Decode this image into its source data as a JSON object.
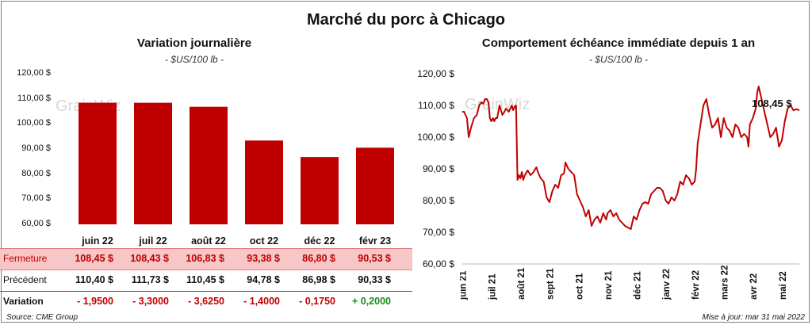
{
  "main_title": "Marché du porc à Chicago",
  "watermark": "GrainWiz",
  "left": {
    "title": "Variation  journalière",
    "units": "- $US/100 lb -",
    "yticks": [
      "120,00 $",
      "110,00 $",
      "100,00 $",
      "90,00 $",
      "80,00 $",
      "70,00 $",
      "60,00 $"
    ],
    "chart_data": {
      "type": "bar",
      "categories": [
        "juin 22",
        "juil 22",
        "août 22",
        "oct 22",
        "déc 22",
        "févr 23"
      ],
      "values": [
        108.45,
        108.43,
        106.83,
        93.38,
        86.8,
        90.53
      ],
      "ylim": [
        60,
        120
      ],
      "bar_color": "#c00000"
    },
    "table": {
      "rows": [
        {
          "label": "Fermeture",
          "values": [
            "108,45  $",
            "108,43  $",
            "106,83  $",
            "93,38  $",
            "86,80  $",
            "90,53  $"
          ]
        },
        {
          "label": "Précédent",
          "values": [
            "110,40  $",
            "111,73  $",
            "110,45  $",
            "94,78  $",
            "86,98  $",
            "90,33  $"
          ]
        },
        {
          "label": "Variation",
          "values": [
            "- 1,9500",
            "- 3,3000",
            "- 3,6250",
            "- 1,4000",
            "- 0,1750",
            "+ 0,2000"
          ]
        }
      ]
    },
    "source": "Source: CME Group"
  },
  "right": {
    "title": "Comportement  échéance immédiate depuis 1 an",
    "units": "- $US/100 lb -",
    "yticks": [
      "120,00 $",
      "110,00 $",
      "100,00 $",
      "90,00 $",
      "80,00 $",
      "70,00 $",
      "60,00 $"
    ],
    "xticks": [
      "juin 21",
      "juil 21",
      "août 21",
      "sept 21",
      "oct 21",
      "nov 21",
      "déc 21",
      "janv 22",
      "févr 22",
      "mars 22",
      "avr 22",
      "mai 22"
    ],
    "last_label": "108,45 $",
    "update": "Mise à jour: mar 31 mai 2022",
    "chart_data": {
      "type": "line",
      "ylim": [
        60,
        120
      ],
      "color": "#c00000",
      "x": [
        0,
        0.06,
        0.16,
        0.22,
        0.3,
        0.4,
        0.5,
        0.58,
        0.66,
        0.72,
        0.78,
        0.84,
        0.9,
        0.95,
        1.0,
        1.06,
        1.1,
        1.15,
        1.2,
        1.28,
        1.38,
        1.45,
        1.5,
        1.6,
        1.7,
        1.75,
        1.8,
        1.85,
        1.9,
        1.95,
        2.0,
        2.05,
        2.1,
        2.15,
        2.25,
        2.35,
        2.45,
        2.55,
        2.6,
        2.7,
        2.8,
        2.9,
        3.0,
        3.1,
        3.2,
        3.3,
        3.4,
        3.5,
        3.55,
        3.65,
        3.75,
        3.85,
        3.95,
        4.05,
        4.15,
        4.25,
        4.35,
        4.45,
        4.55,
        4.65,
        4.75,
        4.85,
        4.95,
        5.0,
        5.1,
        5.2,
        5.3,
        5.4,
        5.5,
        5.6,
        5.7,
        5.8,
        5.9,
        6.0,
        6.1,
        6.2,
        6.3,
        6.4,
        6.5,
        6.6,
        6.7,
        6.8,
        6.9,
        7.0,
        7.1,
        7.2,
        7.3,
        7.4,
        7.5,
        7.6,
        7.7,
        7.8,
        7.9,
        8.0,
        8.05,
        8.1,
        8.2,
        8.3,
        8.4,
        8.5,
        8.6,
        8.7,
        8.8,
        8.9,
        9.0,
        9.1,
        9.2,
        9.3,
        9.4,
        9.5,
        9.6,
        9.7,
        9.8,
        9.85,
        9.9,
        10.0,
        10.1,
        10.15,
        10.2,
        10.3,
        10.4,
        10.5,
        10.6,
        10.7,
        10.8,
        10.9,
        11.0,
        11.1,
        11.2,
        11.3,
        11.4,
        11.5,
        11.6
      ],
      "y": [
        108,
        108,
        106,
        100,
        103,
        106,
        107,
        110,
        111,
        110.5,
        112,
        112,
        111,
        106,
        105,
        106,
        105,
        106,
        106,
        110,
        107,
        108,
        109,
        108,
        110,
        108.5,
        109.5,
        110,
        86.5,
        88,
        87,
        89,
        86.5,
        88,
        89.5,
        88,
        89,
        90.5,
        89,
        87,
        86,
        81,
        79.5,
        83,
        85,
        84,
        88,
        88.5,
        92,
        90,
        89,
        88,
        82,
        80,
        78,
        75,
        77,
        72,
        74,
        75,
        73,
        76,
        74,
        76,
        77,
        75,
        76,
        74,
        73,
        72,
        71.5,
        71,
        75,
        74,
        77,
        79,
        79.5,
        79,
        82,
        83,
        84,
        84,
        83,
        80,
        79,
        81,
        80,
        82,
        86,
        85,
        88,
        87,
        85,
        86,
        90,
        98,
        104,
        110,
        112,
        107,
        103,
        104,
        106,
        100,
        106,
        103,
        102,
        100,
        104,
        103,
        100,
        101,
        100,
        97,
        104,
        106,
        109,
        114,
        116,
        112,
        108,
        104,
        100,
        101,
        103,
        97,
        99,
        105,
        109,
        110,
        108.45,
        108.8,
        108.5
      ]
    }
  }
}
